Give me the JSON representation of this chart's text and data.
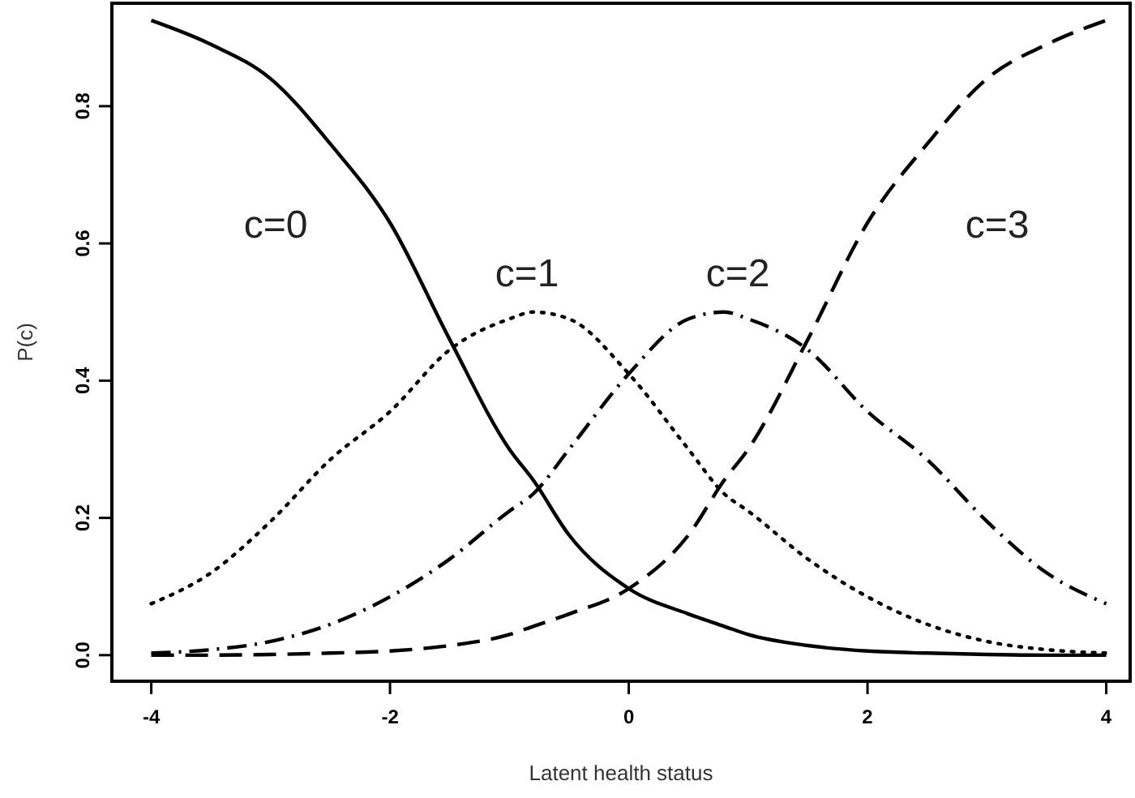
{
  "chart_data": {
    "type": "line",
    "xlabel": "Latent health status",
    "ylabel": "P(c)",
    "x": [
      -4,
      -3.5,
      -3,
      -2.5,
      -2,
      -1.5,
      -1,
      -0.8,
      -0.5,
      0,
      0.5,
      0.8,
      1,
      1.5,
      2,
      2.5,
      3,
      3.5,
      4
    ],
    "series": [
      {
        "name": "c=0",
        "color": "#000000",
        "line_style": "solid",
        "values": [
          0.925,
          0.89,
          0.84,
          0.745,
          0.63,
          0.46,
          0.3,
          0.255,
          0.175,
          0.097,
          0.06,
          0.042,
          0.03,
          0.014,
          0.006,
          0.003,
          0.001,
          0,
          0
        ]
      },
      {
        "name": "c=1",
        "color": "#000000",
        "line_style": "dotted",
        "values": [
          0.075,
          0.12,
          0.195,
          0.285,
          0.355,
          0.445,
          0.49,
          0.5,
          0.49,
          0.41,
          0.3,
          0.235,
          0.21,
          0.14,
          0.085,
          0.045,
          0.02,
          0.008,
          0.003
        ]
      },
      {
        "name": "c=2",
        "color": "#000000",
        "line_style": "dashdot",
        "values": [
          0.003,
          0.008,
          0.02,
          0.045,
          0.085,
          0.14,
          0.21,
          0.235,
          0.3,
          0.41,
          0.49,
          0.5,
          0.49,
          0.445,
          0.355,
          0.285,
          0.195,
          0.12,
          0.075
        ]
      },
      {
        "name": "c=3",
        "color": "#000000",
        "line_style": "dashed",
        "values": [
          0,
          0,
          0.001,
          0.003,
          0.006,
          0.014,
          0.03,
          0.042,
          0.06,
          0.097,
          0.175,
          0.255,
          0.3,
          0.46,
          0.63,
          0.745,
          0.84,
          0.89,
          0.925
        ]
      }
    ],
    "xlim": [
      -4.33,
      4.2
    ],
    "ylim": [
      -0.038,
      0.95
    ],
    "xticks": [
      -4,
      -2,
      0,
      2,
      4
    ],
    "yticks": [
      {
        "value": 0,
        "label": "0.0"
      },
      {
        "value": 0.2,
        "label": "0.2"
      },
      {
        "value": 0.4,
        "label": "0.4"
      },
      {
        "value": 0.6,
        "label": "0.6"
      },
      {
        "value": 0.8,
        "label": "0.8"
      }
    ],
    "grid": false,
    "marker": "none"
  }
}
